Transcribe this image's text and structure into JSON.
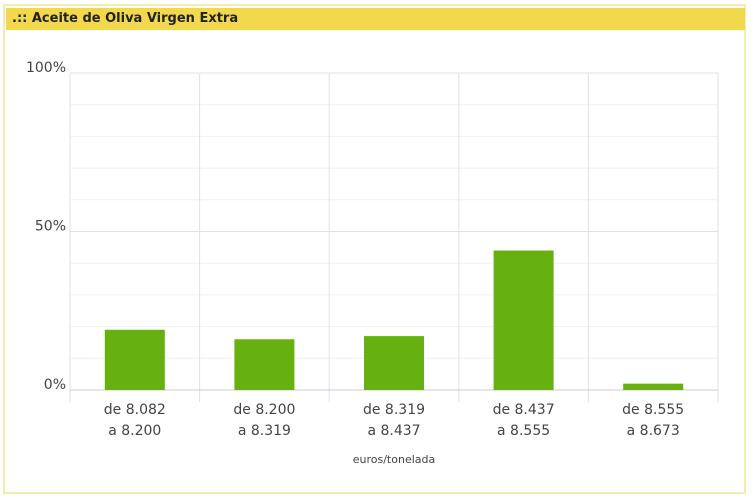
{
  "header": {
    "title": ".:: Aceite de Oliva Virgen Extra"
  },
  "chart_data": {
    "type": "bar",
    "categories": [
      [
        "de 8.082",
        "a 8.200"
      ],
      [
        "de 8.200",
        "a 8.319"
      ],
      [
        "de 8.319",
        "a 8.437"
      ],
      [
        "de 8.437",
        "a 8.555"
      ],
      [
        "de 8.555",
        "a 8.673"
      ]
    ],
    "values": [
      19,
      16,
      17,
      44,
      2
    ],
    "color": "#66b00f",
    "x_label": "euros/tonelada",
    "ylim": [
      0,
      100
    ],
    "yticks": [
      {
        "value": 0,
        "label": "0%"
      },
      {
        "value": 50,
        "label": "50%"
      },
      {
        "value": 100,
        "label": "100%"
      }
    ],
    "y_minor_ticks": [
      10,
      20,
      30,
      40,
      60,
      70,
      80,
      90
    ],
    "grid": true
  }
}
